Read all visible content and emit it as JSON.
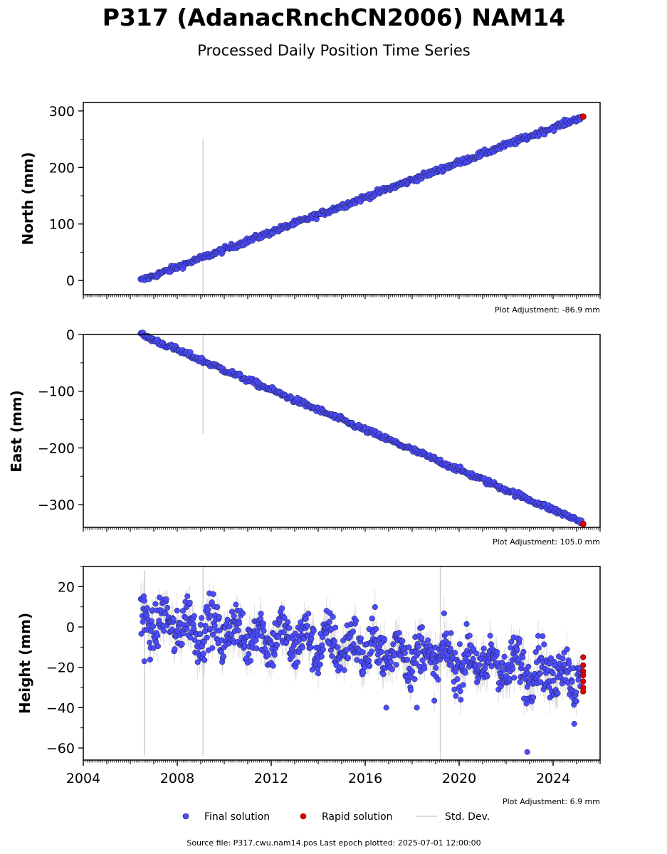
{
  "header": {
    "title": "P317 (AdanacRnchCN2006) NAM14",
    "subtitle": "Processed Daily Position Time Series"
  },
  "legend": {
    "final": "Final solution",
    "rapid": "Rapid solution",
    "std": "Std. Dev."
  },
  "footer": "Source file: P317.cwu.nam14.pos  Last epoch plotted: 2025-07-01 12:00:00",
  "colors": {
    "final": "#4c4cff",
    "final_edge": "#1a1a40",
    "rapid": "#e00000",
    "stddev": "#bdbdbd"
  },
  "chart_data": [
    {
      "type": "scatter",
      "ylabel": "North (mm)",
      "adjustment": "Plot Adjustment: -86.9 mm",
      "xlim": [
        2004.0,
        2026.0
      ],
      "ylim": [
        -25,
        315
      ],
      "yticks": [
        0,
        100,
        200,
        300
      ],
      "ytick_labels": [
        "0",
        "100",
        "200",
        "300"
      ],
      "series": [
        {
          "name": "Final solution",
          "trend": {
            "x": [
              2006.45,
              2025.2
            ],
            "y": [
              0,
              289
            ]
          },
          "scatter": 2.5
        },
        {
          "name": "Rapid solution",
          "x": [
            2025.28
          ],
          "y": [
            290
          ]
        }
      ],
      "stddev_spikes": [
        {
          "x": 2009.1,
          "y": [
            -23,
            250
          ]
        }
      ]
    },
    {
      "type": "scatter",
      "ylabel": "East (mm)",
      "adjustment": "Plot Adjustment: 105.0 mm",
      "xlim": [
        2004.0,
        2026.0
      ],
      "ylim": [
        -340,
        0
      ],
      "yticks": [
        0,
        -100,
        -200,
        -300
      ],
      "ytick_labels": [
        "0",
        "−100",
        "−200",
        "−300"
      ],
      "series": [
        {
          "name": "Final solution",
          "trend": {
            "x": [
              2006.45,
              2025.2
            ],
            "y": [
              0,
              -330
            ]
          },
          "scatter": 2.5
        },
        {
          "name": "Rapid solution",
          "x": [
            2025.28
          ],
          "y": [
            -334
          ]
        }
      ],
      "stddev_spikes": [
        {
          "x": 2009.1,
          "y": [
            0,
            -175
          ]
        }
      ]
    },
    {
      "type": "scatter",
      "ylabel": "Height (mm)",
      "adjustment": "Plot Adjustment: 6.9 mm",
      "xlim": [
        2004.0,
        2026.0
      ],
      "ylim": [
        -66,
        30
      ],
      "yticks": [
        20,
        0,
        -20,
        -40,
        -60
      ],
      "ytick_labels": [
        "20",
        "0",
        "−20",
        "−40",
        "−60"
      ],
      "xticks": [
        2004,
        2008,
        2012,
        2016,
        2020,
        2024
      ],
      "xtick_labels": [
        "2004",
        "2008",
        "2012",
        "2016",
        "2020",
        "2024"
      ],
      "series": [
        {
          "name": "Final solution",
          "trend": {
            "x": [
              2006.45,
              2025.2
            ],
            "y": [
              3,
              -24
            ]
          },
          "seasonal_amplitude": 6,
          "scatter": 6
        },
        {
          "name": "Rapid solution",
          "x": [
            2025.28,
            2025.28,
            2025.28,
            2025.28,
            2025.28,
            2025.28,
            2025.28
          ],
          "y": [
            -15,
            -19,
            -22,
            -24,
            -27,
            -30,
            -32
          ]
        }
      ],
      "stddev_spikes": [
        {
          "x": 2006.6,
          "y": [
            -64,
            28
          ]
        },
        {
          "x": 2009.1,
          "y": [
            -64,
            30
          ]
        },
        {
          "x": 2019.2,
          "y": [
            -66,
            30
          ]
        }
      ],
      "outliers": [
        {
          "x": 2006.6,
          "y": -17
        },
        {
          "x": 2022.9,
          "y": -62
        },
        {
          "x": 2018.2,
          "y": -40
        },
        {
          "x": 2024.9,
          "y": -48
        },
        {
          "x": 2016.9,
          "y": -40
        }
      ]
    }
  ]
}
